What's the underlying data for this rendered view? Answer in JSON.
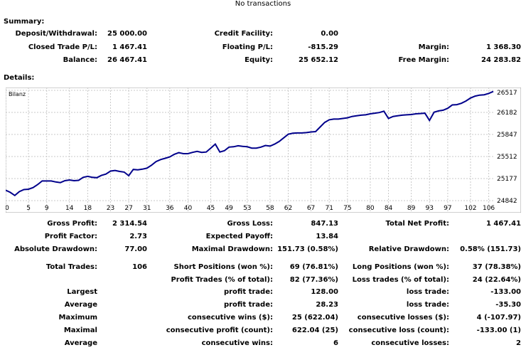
{
  "report": {
    "title": "No transactions"
  },
  "summary": {
    "header": "Summary:",
    "rows": [
      [
        {
          "label": "Deposit/Withdrawal:",
          "value": "25 000.00"
        },
        {
          "label": "Credit Facility:",
          "value": "0.00"
        },
        {
          "label": "",
          "value": ""
        }
      ],
      [
        {
          "label": "Closed Trade P/L:",
          "value": "1 467.41"
        },
        {
          "label": "Floating P/L:",
          "value": "-815.29"
        },
        {
          "label": "Margin:",
          "value": "1 368.30"
        }
      ],
      [
        {
          "label": "Balance:",
          "value": "26 467.41"
        },
        {
          "label": "Equity:",
          "value": "25 652.12"
        },
        {
          "label": "Free Margin:",
          "value": "24 283.82"
        }
      ]
    ]
  },
  "details": {
    "header": "Details:"
  },
  "chart_data": {
    "type": "line",
    "title": "Bilanz",
    "series": [
      {
        "name": "Bilanz",
        "color": "#00008b"
      }
    ],
    "x": [
      0,
      1,
      2,
      3,
      4,
      5,
      6,
      7,
      8,
      9,
      10,
      11,
      12,
      13,
      14,
      15,
      16,
      17,
      18,
      19,
      20,
      21,
      22,
      23,
      24,
      25,
      26,
      27,
      28,
      29,
      30,
      31,
      32,
      33,
      34,
      35,
      36,
      37,
      38,
      39,
      40,
      41,
      42,
      43,
      44,
      45,
      46,
      47,
      48,
      49,
      50,
      51,
      52,
      53,
      54,
      55,
      56,
      57,
      58,
      59,
      60,
      61,
      62,
      63,
      64,
      65,
      66,
      67,
      68,
      69,
      70,
      71,
      72,
      73,
      74,
      75,
      76,
      77,
      78,
      79,
      80,
      81,
      82,
      83,
      84,
      85,
      86,
      87,
      88,
      89,
      90,
      91,
      92,
      93,
      94,
      95,
      96,
      97,
      98,
      99,
      100,
      101,
      102,
      103,
      104,
      105,
      106,
      107
    ],
    "values": [
      25000,
      24967,
      24920,
      24978,
      25010,
      25015,
      25040,
      25085,
      25140,
      25140,
      25140,
      25125,
      25115,
      25145,
      25155,
      25145,
      25150,
      25195,
      25210,
      25195,
      25190,
      25225,
      25245,
      25290,
      25300,
      25285,
      25275,
      25220,
      25315,
      25310,
      25320,
      25335,
      25380,
      25435,
      25465,
      25485,
      25505,
      25545,
      25570,
      25555,
      25555,
      25575,
      25590,
      25575,
      25580,
      25640,
      25700,
      25580,
      25600,
      25655,
      25660,
      25675,
      25665,
      25660,
      25640,
      25640,
      25655,
      25680,
      25670,
      25700,
      25740,
      25795,
      25850,
      25865,
      25870,
      25870,
      25875,
      25885,
      25890,
      25960,
      26030,
      26070,
      26080,
      26080,
      26090,
      26100,
      26120,
      26130,
      26140,
      26145,
      26160,
      26170,
      26180,
      26200,
      26090,
      26120,
      26130,
      26140,
      26145,
      26150,
      26160,
      26165,
      26170,
      26060,
      26185,
      26205,
      26215,
      26245,
      26295,
      26300,
      26320,
      26355,
      26400,
      26430,
      26445,
      26450,
      26470,
      26500
    ],
    "x_ticks": [
      0,
      5,
      9,
      14,
      18,
      23,
      27,
      31,
      36,
      40,
      45,
      49,
      53,
      58,
      62,
      67,
      71,
      75,
      80,
      84,
      89,
      93,
      97,
      102,
      106
    ],
    "y_ticks": [
      24842,
      25177,
      25512,
      25847,
      26182,
      26517
    ],
    "ylim": [
      24842,
      26517
    ],
    "xlim": [
      0,
      107
    ],
    "grid": true
  },
  "stats": {
    "row1": [
      {
        "label": "Gross Profit:",
        "value": "2 314.54"
      },
      {
        "label": "Gross Loss:",
        "value": "847.13"
      },
      {
        "label": "Total Net Profit:",
        "value": "1 467.41"
      }
    ],
    "row2": [
      {
        "label": "Profit Factor:",
        "value": "2.73"
      },
      {
        "label": "Expected Payoff:",
        "value": "13.84"
      }
    ],
    "row3": [
      {
        "label": "Absolute Drawdown:",
        "value": "77.00"
      },
      {
        "label": "Maximal Drawdown:",
        "value": "151.73 (0.58%)"
      },
      {
        "label": "Relative Drawdown:",
        "value": "0.58% (151.73)"
      }
    ],
    "trades": {
      "total_label": "Total Trades:",
      "total_value": "106",
      "short_label": "Short Positions (won %):",
      "short_value": "69 (76.81%)",
      "long_label": "Long Positions (won %):",
      "long_value": "37 (78.38%)",
      "profit_trades_label": "Profit Trades (% of total):",
      "profit_trades_value": "82 (77.36%)",
      "loss_trades_label": "Loss trades (% of total):",
      "loss_trades_value": "24 (22.64%)"
    },
    "rows": [
      {
        "label": "Largest",
        "pl": "profit trade:",
        "pv": "128.00",
        "ll": "loss trade:",
        "lv": "-133.00"
      },
      {
        "label": "Average",
        "pl": "profit trade:",
        "pv": "28.23",
        "ll": "loss trade:",
        "lv": "-35.30"
      },
      {
        "label": "Maximum",
        "pl": "consecutive wins ($):",
        "pv": "25 (622.04)",
        "ll": "consecutive losses ($):",
        "lv": "4 (-107.97)"
      },
      {
        "label": "Maximal",
        "pl": "consecutive profit (count):",
        "pv": "622.04 (25)",
        "ll": "consecutive loss (count):",
        "lv": "-133.00 (1)"
      },
      {
        "label": "Average",
        "pl": "consecutive wins:",
        "pv": "6",
        "ll": "consecutive losses:",
        "lv": "2"
      }
    ]
  }
}
